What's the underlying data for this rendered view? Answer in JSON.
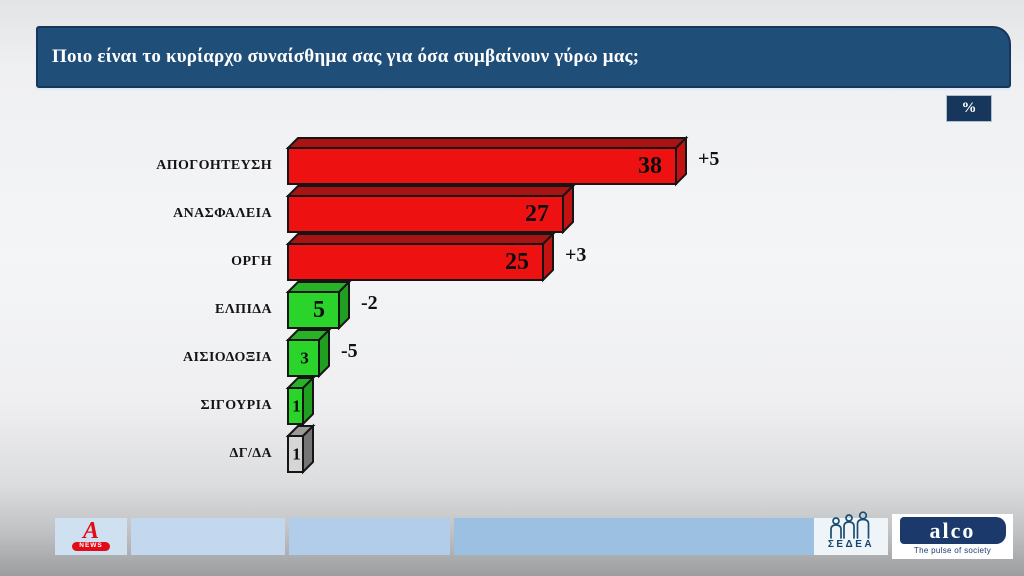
{
  "header": {
    "question": "Ποιο είναι το κυρίαρχο συναίσθημα σας για όσα συμβαίνουν γύρω μας;",
    "unit_badge": "%"
  },
  "chart_data": {
    "type": "bar",
    "orientation": "horizontal",
    "unit": "%",
    "title": "Ποιο είναι το κυρίαρχο συναίσθημα σας για όσα συμβαίνουν γύρω μας;",
    "categories": [
      "ΑΠΟΓΟΗΤΕΥΣΗ",
      "ΑΝΑΣΦΑΛΕΙΑ",
      "ΟΡΓΗ",
      "ΕΛΠΙΔΑ",
      "ΑΙΣΙΟΔΟΞΙΑ",
      "ΣΙΓΟΥΡΙΑ",
      "ΔΓ/ΔΑ"
    ],
    "values": [
      38,
      27,
      25,
      5,
      3,
      1,
      1
    ],
    "deltas": [
      "+5",
      "",
      "+3",
      "-2",
      "-5",
      "",
      ""
    ],
    "bar_styles": [
      "negative",
      "negative",
      "negative",
      "positive",
      "positive",
      "positive",
      "neutral"
    ],
    "palette": {
      "negative": {
        "front": "#ee1111",
        "top": "#a81414",
        "side": "#c31212"
      },
      "positive": {
        "front": "#2bd42b",
        "top": "#28b228",
        "side": "#1f9e1f"
      },
      "neutral": {
        "front": "#d6d6d6",
        "top": "#9a9a9a",
        "side": "#757575"
      }
    },
    "xlim": [
      0,
      40
    ],
    "grid": false,
    "legend": false
  },
  "footer": {
    "alpha_news": {
      "letter": "A",
      "label": "NEWS"
    },
    "sedea": {
      "label": "ΣΕΔΕΑ"
    },
    "alco": {
      "brand": "alco",
      "tagline": "The pulse of society"
    }
  }
}
